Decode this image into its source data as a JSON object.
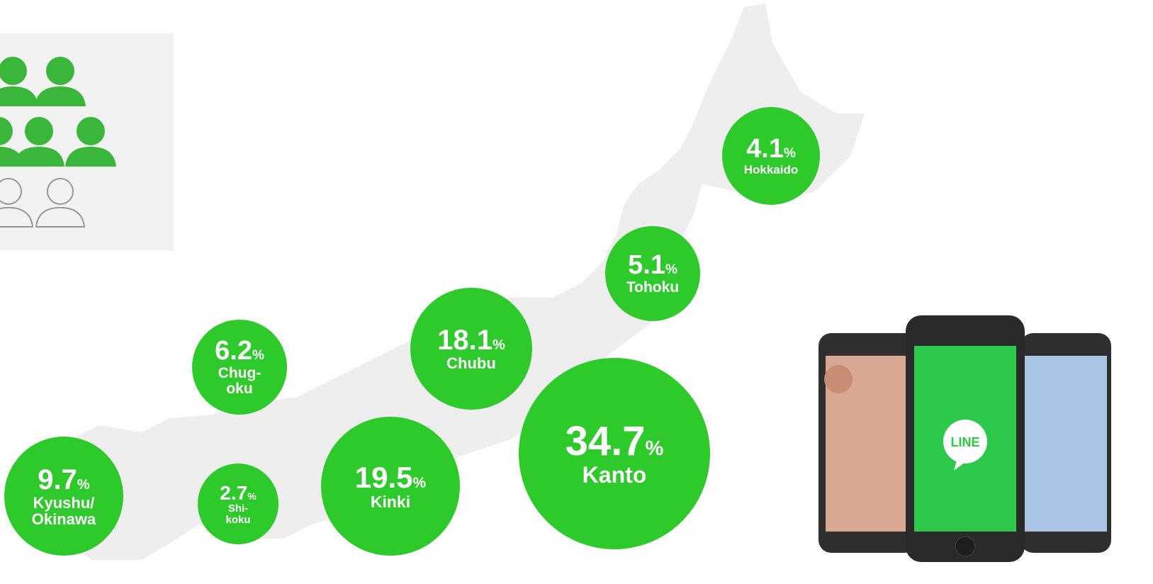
{
  "regions": [
    {
      "value": "4.1",
      "unit": "%",
      "name": [
        "Hokkaido"
      ]
    },
    {
      "value": "5.1",
      "unit": "%",
      "name": [
        "Tohoku"
      ]
    },
    {
      "value": "18.1",
      "unit": "%",
      "name": [
        "Chubu"
      ]
    },
    {
      "value": "34.7",
      "unit": "%",
      "name": [
        "Kanto"
      ]
    },
    {
      "value": "6.2",
      "unit": "%",
      "name": [
        "Chug-",
        "oku"
      ]
    },
    {
      "value": "19.5",
      "unit": "%",
      "name": [
        "Kinki"
      ]
    },
    {
      "value": "2.7",
      "unit": "%",
      "name": [
        "Shi-",
        "koku"
      ]
    },
    {
      "value": "9.7",
      "unit": "%",
      "name": [
        "Kyushu/",
        "Okinawa"
      ]
    }
  ],
  "phone_logo": "LINE"
}
